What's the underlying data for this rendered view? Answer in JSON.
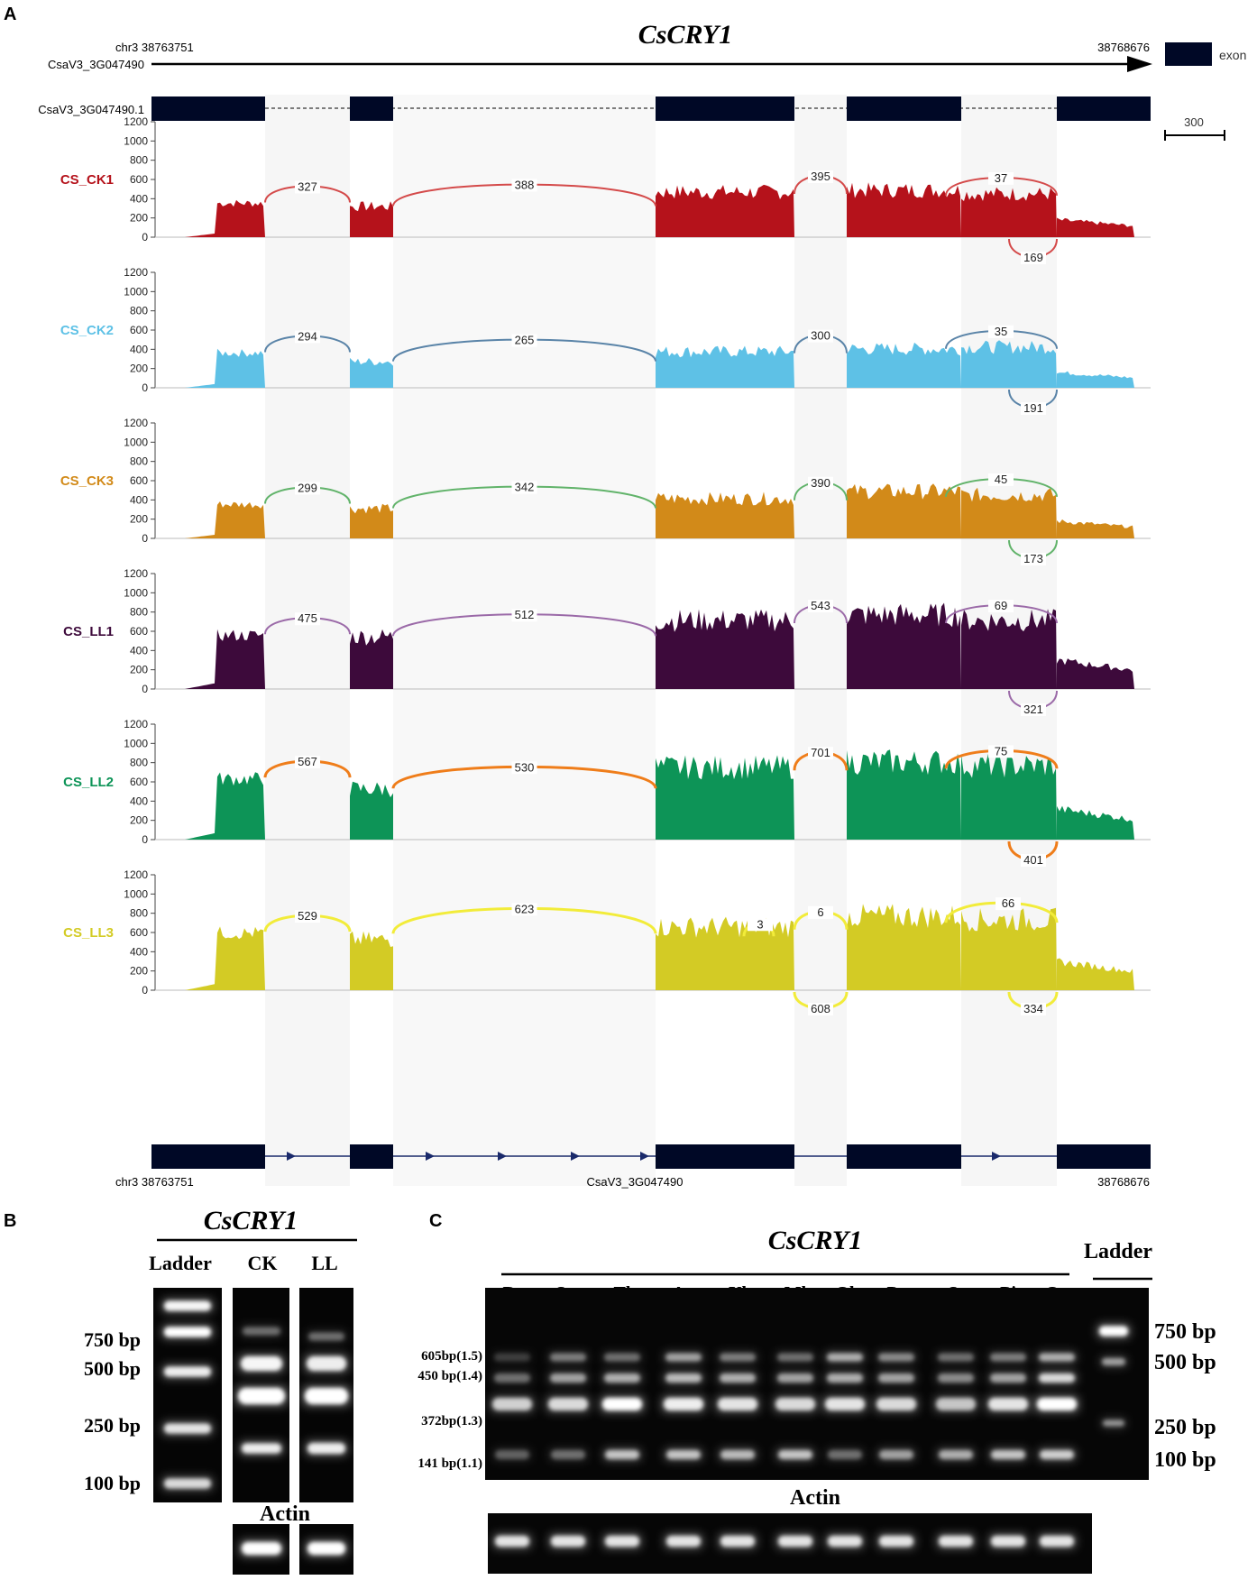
{
  "panel_labels": {
    "a": "A",
    "b": "B",
    "c": "C"
  },
  "panel_a": {
    "gene_title": "CsCRY1",
    "chrom_start_label": "chr3  38763751",
    "chrom_end_label": "38768676",
    "gene_id": "CsaV3_3G047490",
    "transcript_id": "CsaV3_3G047490.1",
    "legend_label": "exon",
    "scale_label": "300",
    "bottom_start_label": "chr3  38763751",
    "bottom_gene_label": "CsaV3_3G047490",
    "bottom_end_label": "38768676",
    "y_ticks": [
      "0",
      "200",
      "400",
      "600",
      "800",
      "1000",
      "1200"
    ]
  },
  "chart_data": {
    "type": "area",
    "title": "CsCRY1 sashimi plot",
    "ylim": [
      0,
      1200
    ],
    "y_ticks": [
      0,
      200,
      400,
      600,
      800,
      1000,
      1200
    ],
    "series": [
      {
        "name": "CS_CK1",
        "color": "#b5121b",
        "arc_color": "#d44a4a",
        "exon_levels": [
          380,
          340,
          500,
          520,
          480,
          180
        ],
        "junctions": [
          {
            "label": "327"
          },
          {
            "label": "388"
          },
          {
            "label": "395"
          },
          {
            "label": "37"
          },
          {
            "label": "169"
          }
        ]
      },
      {
        "name": "CS_CK2",
        "color": "#5ec1e6",
        "arc_color": "#5a84a8",
        "exon_levels": [
          390,
          290,
          400,
          430,
          450,
          160
        ],
        "junctions": [
          {
            "label": "294"
          },
          {
            "label": "265"
          },
          {
            "label": "300"
          },
          {
            "label": "35"
          },
          {
            "label": "191"
          }
        ]
      },
      {
        "name": "CS_CK3",
        "color": "#d28a19",
        "arc_color": "#61b36a",
        "exon_levels": [
          380,
          330,
          440,
          520,
          480,
          180
        ],
        "junctions": [
          {
            "label": "299"
          },
          {
            "label": "342"
          },
          {
            "label": "390"
          },
          {
            "label": "45"
          },
          {
            "label": "173"
          }
        ]
      },
      {
        "name": "CS_LL1",
        "color": "#3d0a3b",
        "arc_color": "#9b6aa8",
        "exon_levels": [
          600,
          580,
          760,
          820,
          760,
          300
        ],
        "junctions": [
          {
            "label": "475"
          },
          {
            "label": "512"
          },
          {
            "label": "543"
          },
          {
            "label": "69"
          },
          {
            "label": "321"
          }
        ]
      },
      {
        "name": "CS_LL2",
        "color": "#0d9457",
        "arc_color": "#ef7d1a",
        "exon_levels": [
          680,
          560,
          800,
          860,
          820,
          320
        ],
        "junctions": [
          {
            "label": "567"
          },
          {
            "label": "530"
          },
          {
            "label": "701"
          },
          {
            "label": "75"
          },
          {
            "label": "401"
          }
        ]
      },
      {
        "name": "CS_LL3",
        "color": "#d3cb25",
        "arc_color": "#f2ec3a",
        "exon_levels": [
          640,
          560,
          700,
          820,
          780,
          300
        ],
        "junctions": [
          {
            "label": "529"
          },
          {
            "label": "623"
          },
          {
            "label": "6"
          },
          {
            "label": "66"
          },
          {
            "label": "334"
          },
          {
            "label": "3"
          },
          {
            "label": "608"
          }
        ]
      }
    ]
  },
  "panel_b": {
    "title": "CsCRY1",
    "lanes": [
      "Ladder",
      "CK",
      "LL"
    ],
    "ladder_labels": [
      "750 bp",
      "500 bp",
      "250 bp",
      "100 bp"
    ],
    "actin_label": "Actin"
  },
  "panel_c": {
    "title": "CsCRY1",
    "ladder_title": "Ladder",
    "lanes": [
      "Rt",
      "Sm",
      "Tl",
      "Ap",
      "Yl",
      "Ml",
      "Ol",
      "Pe",
      "St",
      "Pi",
      "Ov"
    ],
    "isoform_labels": [
      "605bp(1.5)",
      "450 bp(1.4)",
      "372bp(1.3)",
      "141 bp(1.1)"
    ],
    "ladder_labels": [
      "750 bp",
      "500 bp",
      "250 bp",
      "100 bp"
    ],
    "actin_label": "Actin"
  }
}
